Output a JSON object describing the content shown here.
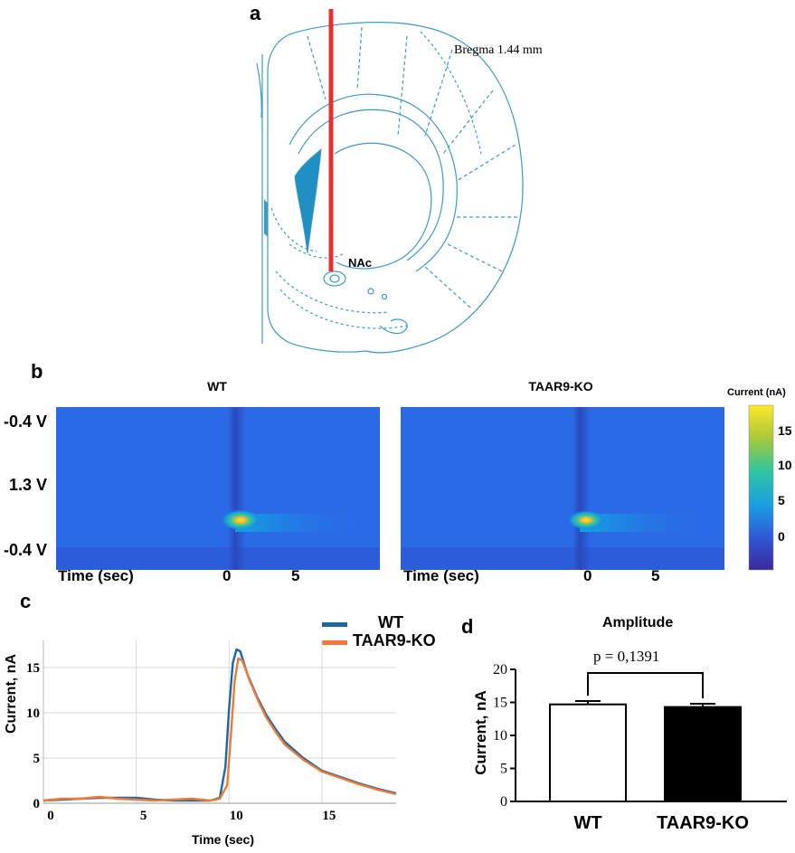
{
  "panels": {
    "a": "a",
    "b": "b",
    "c": "c",
    "d": "d"
  },
  "brain": {
    "bregma_label": "Bregma 1.44 mm",
    "region_label": "NAc",
    "electrode_color": "#e8312a",
    "outline_color": "#3a9cc4"
  },
  "heatmaps": {
    "titles": [
      "WT",
      "TAAR9-KO"
    ],
    "voltage_labels": [
      "-0.4 V",
      "1.3 V",
      "-0.4 V"
    ],
    "time_label": "Time (sec)",
    "time_ticks": [
      "0",
      "5"
    ],
    "colorbar": {
      "title": "Current (nA)",
      "ticks": [
        "15",
        "10",
        "5",
        "0"
      ],
      "min": -5,
      "max": 18
    }
  },
  "chart_data": [
    {
      "type": "line",
      "panel": "c",
      "title": "",
      "xlabel": "Time (sec)",
      "ylabel": "Current, nA",
      "xlim": [
        0,
        19
      ],
      "ylim": [
        0,
        18
      ],
      "xticks": [
        "0",
        "5",
        "10",
        "15"
      ],
      "yticks": [
        "0",
        "5",
        "10",
        "15"
      ],
      "grid": true,
      "legend": "top-right",
      "series": [
        {
          "name": "WT",
          "color": "#1f67a3",
          "x": [
            0,
            1,
            2,
            3,
            4,
            5,
            6,
            7,
            8,
            9,
            9.5,
            9.8,
            10.0,
            10.2,
            10.4,
            10.6,
            10.8,
            11.0,
            11.5,
            12,
            12.5,
            13,
            14,
            15,
            16,
            17,
            18,
            19
          ],
          "y": [
            0.3,
            0.4,
            0.5,
            0.6,
            0.6,
            0.6,
            0.4,
            0.3,
            0.3,
            0.3,
            0.6,
            4.0,
            10.5,
            15.5,
            17.0,
            16.8,
            15.5,
            14.2,
            11.8,
            9.8,
            8.2,
            6.8,
            5.0,
            3.6,
            2.9,
            2.2,
            1.6,
            1.1
          ]
        },
        {
          "name": "TAAR9-KO",
          "color": "#f07a35",
          "x": [
            0,
            1,
            2,
            3,
            4,
            5,
            6,
            7,
            8,
            9,
            9.5,
            9.9,
            10.1,
            10.3,
            10.5,
            10.7,
            10.9,
            11.1,
            11.6,
            12,
            12.5,
            13,
            14,
            15,
            16,
            17,
            18,
            19
          ],
          "y": [
            0.3,
            0.5,
            0.5,
            0.7,
            0.5,
            0.4,
            0.3,
            0.4,
            0.5,
            0.3,
            0.5,
            2.0,
            7.5,
            13.5,
            16.0,
            15.8,
            14.8,
            13.6,
            11.2,
            9.5,
            7.9,
            6.5,
            4.8,
            3.5,
            2.8,
            2.1,
            1.5,
            1.0
          ]
        }
      ]
    },
    {
      "type": "bar",
      "panel": "d",
      "title": "Amplitude",
      "xlabel": "",
      "ylabel": "Current, nA",
      "ylim": [
        0,
        20
      ],
      "yticks": [
        "0",
        "5",
        "10",
        "15",
        "20"
      ],
      "categories": [
        "WT",
        "TAAR9-KO"
      ],
      "values": [
        14.7,
        14.3
      ],
      "errors": [
        0.5,
        0.5
      ],
      "fills": [
        "#ffffff",
        "#000000"
      ],
      "annotation": "p = 0,1391"
    }
  ]
}
